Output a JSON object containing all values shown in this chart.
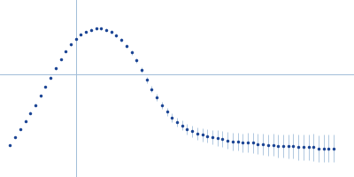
{
  "background_color": "#ffffff",
  "spine_color": "#a0bcd8",
  "marker_color": "#1a4494",
  "errorbar_color": "#b0c8e0",
  "marker_size": 2.5,
  "elinewidth": 0.7,
  "figsize": [
    4.0,
    2.0
  ],
  "dpi": 100,
  "x_values": [
    0.02,
    0.04,
    0.06,
    0.08,
    0.1,
    0.12,
    0.14,
    0.16,
    0.18,
    0.2,
    0.22,
    0.24,
    0.26,
    0.28,
    0.3,
    0.32,
    0.34,
    0.36,
    0.38,
    0.4,
    0.42,
    0.44,
    0.46,
    0.48,
    0.5,
    0.52,
    0.54,
    0.56,
    0.58,
    0.6,
    0.62,
    0.64,
    0.66,
    0.68,
    0.7,
    0.72,
    0.74,
    0.76,
    0.78,
    0.8,
    0.82,
    0.84,
    0.86,
    0.88,
    0.9,
    0.92,
    0.94,
    0.96,
    0.98,
    1.0,
    1.02,
    1.04,
    1.06,
    1.08,
    1.1,
    1.12,
    1.14,
    1.16,
    1.18,
    1.2,
    1.22,
    1.24,
    1.26,
    1.28,
    1.3
  ],
  "y_values": [
    -0.62,
    -0.55,
    -0.48,
    -0.41,
    -0.34,
    -0.27,
    -0.19,
    -0.11,
    -0.03,
    0.05,
    0.13,
    0.2,
    0.26,
    0.31,
    0.35,
    0.37,
    0.39,
    0.4,
    0.4,
    0.39,
    0.37,
    0.34,
    0.3,
    0.25,
    0.19,
    0.12,
    0.04,
    -0.05,
    -0.13,
    -0.2,
    -0.27,
    -0.33,
    -0.38,
    -0.42,
    -0.45,
    -0.48,
    -0.5,
    -0.52,
    -0.53,
    -0.54,
    -0.55,
    -0.56,
    -0.57,
    -0.58,
    -0.59,
    -0.59,
    -0.6,
    -0.6,
    -0.6,
    -0.61,
    -0.61,
    -0.62,
    -0.62,
    -0.63,
    -0.63,
    -0.63,
    -0.63,
    -0.64,
    -0.64,
    -0.64,
    -0.64,
    -0.65,
    -0.65,
    -0.65,
    -0.65
  ],
  "y_errors": [
    0.01,
    0.01,
    0.01,
    0.01,
    0.01,
    0.01,
    0.01,
    0.01,
    0.01,
    0.01,
    0.01,
    0.01,
    0.01,
    0.01,
    0.01,
    0.01,
    0.012,
    0.012,
    0.012,
    0.013,
    0.013,
    0.014,
    0.015,
    0.016,
    0.018,
    0.02,
    0.022,
    0.025,
    0.028,
    0.03,
    0.032,
    0.035,
    0.038,
    0.04,
    0.043,
    0.046,
    0.05,
    0.053,
    0.057,
    0.06,
    0.063,
    0.067,
    0.07,
    0.073,
    0.076,
    0.08,
    0.083,
    0.085,
    0.088,
    0.09,
    0.093,
    0.095,
    0.097,
    0.1,
    0.102,
    0.105,
    0.107,
    0.11,
    0.112,
    0.115,
    0.117,
    0.118,
    0.119,
    0.12,
    0.12
  ],
  "xlim": [
    -0.02,
    1.38
  ],
  "ylim": [
    -0.9,
    0.65
  ],
  "hline_y": 0.0,
  "vline_x": 0.28
}
